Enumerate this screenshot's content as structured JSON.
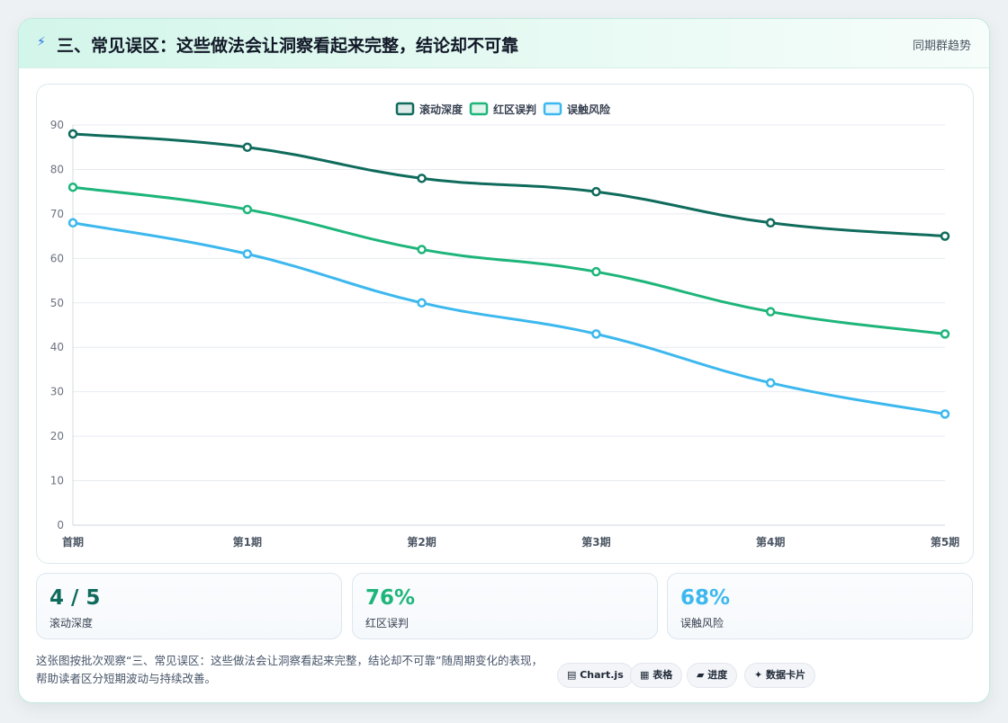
{
  "header": {
    "icon": "bolt-icon",
    "title": "三、常见误区：这些做法会让洞察看起来完整，结论却不可靠",
    "tag": "同期群趋势"
  },
  "chart_data": {
    "type": "line",
    "title": "",
    "xlabel": "",
    "ylabel": "",
    "categories": [
      "首期",
      "第1期",
      "第2期",
      "第3期",
      "第4期",
      "第5期"
    ],
    "ylim": [
      0,
      90
    ],
    "yticks": [
      0,
      10,
      20,
      30,
      40,
      50,
      60,
      70,
      80,
      90
    ],
    "grid": true,
    "legend_position": "top-center",
    "series": [
      {
        "name": "滚动深度",
        "color": "#0f6b5c",
        "values": [
          88,
          85,
          78,
          75,
          68,
          65
        ]
      },
      {
        "name": "红区误判",
        "color": "#1db57a",
        "values": [
          76,
          71,
          62,
          57,
          48,
          43
        ]
      },
      {
        "name": "误触风险",
        "color": "#3cb8ee",
        "values": [
          68,
          61,
          50,
          43,
          32,
          25
        ]
      }
    ]
  },
  "stats": [
    {
      "value": "4 / 5",
      "label": "滚动深度",
      "color": "#0f6b5c"
    },
    {
      "value": "76%",
      "label": "红区误判",
      "color": "#1db57a"
    },
    {
      "value": "68%",
      "label": "误触风险",
      "color": "#3cb8ee"
    }
  ],
  "footer": {
    "description": "这张图按批次观察“三、常见误区：这些做法会让洞察看起来完整，结论却不可靠”随周期变化的表现，帮助读者区分短期波动与持续改善。",
    "chips": [
      {
        "icon": "chart-icon",
        "glyph": "▤",
        "label": "Chart.js"
      },
      {
        "icon": "table-icon",
        "glyph": "▦",
        "label": "表格"
      },
      {
        "icon": "progress-icon",
        "glyph": "▰",
        "label": "进度"
      },
      {
        "icon": "sparkle-icon",
        "glyph": "✦",
        "label": "数据卡片"
      }
    ]
  }
}
